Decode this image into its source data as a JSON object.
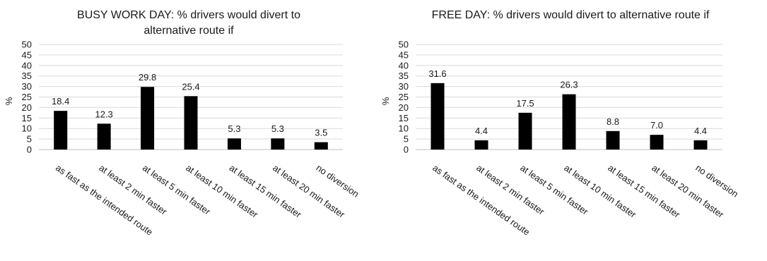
{
  "chart_data": [
    {
      "type": "bar",
      "title_lines": [
        "BUSY WORK DAY: % drivers would divert to",
        "alternative route if"
      ],
      "ylabel": "%",
      "ylim": [
        0,
        50
      ],
      "yticks": [
        0,
        5,
        10,
        15,
        20,
        25,
        30,
        35,
        40,
        45,
        50
      ],
      "grid": true,
      "categories": [
        "as fast as the intended route",
        "at least 2 min faster",
        "at least 5 min faster",
        "at least 10 min faster",
        "at least 15 min faster",
        "at least 20 min faster",
        "no diversion"
      ],
      "values": [
        18.4,
        12.3,
        29.8,
        25.4,
        5.3,
        5.3,
        3.5
      ],
      "data_labels": [
        "18.4",
        "12.3",
        "29.8",
        "25.4",
        "5.3",
        "5.3",
        "3.5"
      ],
      "bar_color": "#000000"
    },
    {
      "type": "bar",
      "title_lines": [
        "FREE DAY: % drivers would divert to alternative route if"
      ],
      "ylabel": "%",
      "ylim": [
        0,
        50
      ],
      "yticks": [
        0,
        5,
        10,
        15,
        20,
        25,
        30,
        35,
        40,
        45,
        50
      ],
      "grid": true,
      "categories": [
        "as fast as the intended route",
        "at least 2 min faster",
        "at least 5 min faster",
        "at least 10 min faster",
        "at least 15 min faster",
        "at least 20 min faster",
        "no diversion"
      ],
      "values": [
        31.6,
        4.4,
        17.5,
        26.3,
        8.8,
        7.0,
        4.4
      ],
      "data_labels": [
        "31.6",
        "4.4",
        "17.5",
        "26.3",
        "8.8",
        "7.0",
        "4.4"
      ],
      "bar_color": "#000000"
    }
  ]
}
